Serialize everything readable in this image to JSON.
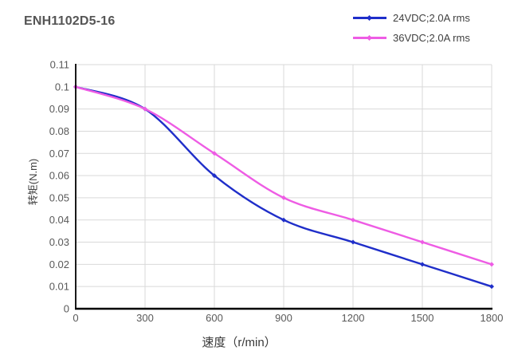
{
  "title": "ENH1102D5-16",
  "legend": {
    "items": [
      {
        "label": "24VDC;2.0A rms"
      },
      {
        "label": "36VDC;2.0A rms"
      }
    ]
  },
  "axes": {
    "x_label": "速度（r/min）",
    "y_label": "转矩(N.m)"
  },
  "chart_data": {
    "type": "line",
    "title": "ENH1102D5-16",
    "xlabel": "速度（r/min）",
    "ylabel": "转矩(N.m)",
    "x": [
      0,
      300,
      600,
      900,
      1200,
      1500,
      1800
    ],
    "series": [
      {
        "name": "24VDC;2.0A rms",
        "color": "#1f2ec9",
        "values": [
          0.1,
          0.09,
          0.06,
          0.04,
          0.03,
          0.02,
          0.01
        ]
      },
      {
        "name": "36VDC;2.0A rms",
        "color": "#ee5ce4",
        "values": [
          0.1,
          0.09,
          0.07,
          0.05,
          0.04,
          0.03,
          0.02
        ]
      }
    ],
    "xlim": [
      0,
      1800
    ],
    "ylim": [
      0,
      0.11
    ],
    "x_ticks": [
      0,
      300,
      600,
      900,
      1200,
      1500,
      1800
    ],
    "x_tick_labels": [
      "0",
      "300",
      "600",
      "900",
      "1200",
      "1500",
      "1800"
    ],
    "y_ticks": [
      0,
      0.01,
      0.02,
      0.03,
      0.04,
      0.05,
      0.06,
      0.07,
      0.08,
      0.09,
      0.1,
      0.11
    ],
    "y_tick_labels": [
      "0",
      "0.01",
      "0.02",
      "0.03",
      "0.04",
      "0.05",
      "0.06",
      "0.07",
      "0.08",
      "0.09",
      "0.1",
      "0.11"
    ],
    "grid": true,
    "line_style": "smooth",
    "marker": "diamond",
    "legend_position": "top-right",
    "colors": {
      "grid": "#d9d9d9",
      "axis": "#000000",
      "tick_text": "#595959",
      "title_text": "#555555"
    }
  }
}
